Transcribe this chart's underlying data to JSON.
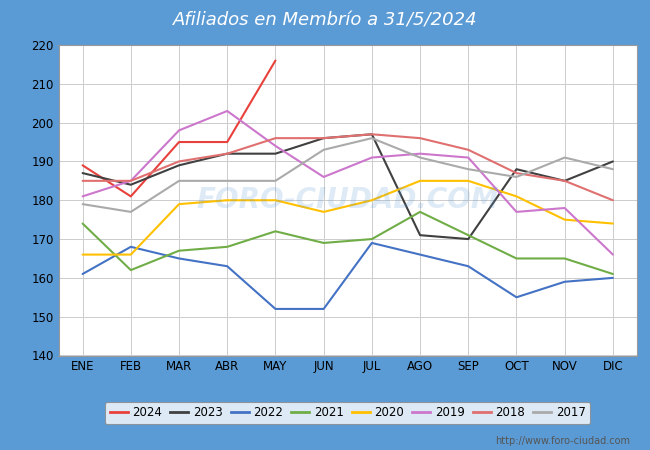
{
  "title": "Afiliados en Membrío a 31/5/2024",
  "title_color": "white",
  "title_bg_color": "#5b9bd5",
  "xlabel": "",
  "ylabel": "",
  "ylim": [
    140,
    220
  ],
  "yticks": [
    140,
    150,
    160,
    170,
    180,
    190,
    200,
    210,
    220
  ],
  "months": [
    "ENE",
    "FEB",
    "MAR",
    "ABR",
    "MAY",
    "JUN",
    "JUL",
    "AGO",
    "SEP",
    "OCT",
    "NOV",
    "DIC"
  ],
  "watermark": "FORO-CIUDAD.COM",
  "url": "http://www.foro-ciudad.com",
  "series": {
    "2024": {
      "color": "#e8413c",
      "data": [
        189,
        181,
        195,
        195,
        216,
        null,
        null,
        null,
        null,
        null,
        null,
        null
      ]
    },
    "2023": {
      "color": "#404040",
      "data": [
        187,
        184,
        189,
        192,
        192,
        196,
        197,
        171,
        170,
        188,
        185,
        190
      ]
    },
    "2022": {
      "color": "#4472c4",
      "data": [
        161,
        168,
        165,
        163,
        152,
        152,
        169,
        166,
        163,
        155,
        159,
        160
      ]
    },
    "2021": {
      "color": "#70ad47",
      "data": [
        174,
        162,
        167,
        168,
        172,
        169,
        170,
        177,
        171,
        165,
        165,
        161
      ]
    },
    "2020": {
      "color": "#ffc000",
      "data": [
        166,
        166,
        179,
        180,
        180,
        177,
        180,
        185,
        185,
        181,
        175,
        174
      ]
    },
    "2019": {
      "color": "#cc77cc",
      "data": [
        181,
        185,
        198,
        203,
        194,
        186,
        191,
        192,
        191,
        177,
        178,
        166
      ]
    },
    "2018": {
      "color": "#e07070",
      "data": [
        185,
        185,
        190,
        192,
        196,
        196,
        197,
        196,
        193,
        187,
        185,
        180
      ]
    },
    "2017": {
      "color": "#aaaaaa",
      "data": [
        179,
        177,
        185,
        185,
        185,
        193,
        196,
        191,
        188,
        186,
        191,
        188
      ]
    }
  },
  "legend_order": [
    "2024",
    "2023",
    "2022",
    "2021",
    "2020",
    "2019",
    "2018",
    "2017"
  ],
  "outer_bg_color": "#5b9bd5",
  "inner_bg_color": "#f2f2f2",
  "plot_bg_color": "#ffffff",
  "grid_color": "#cccccc"
}
